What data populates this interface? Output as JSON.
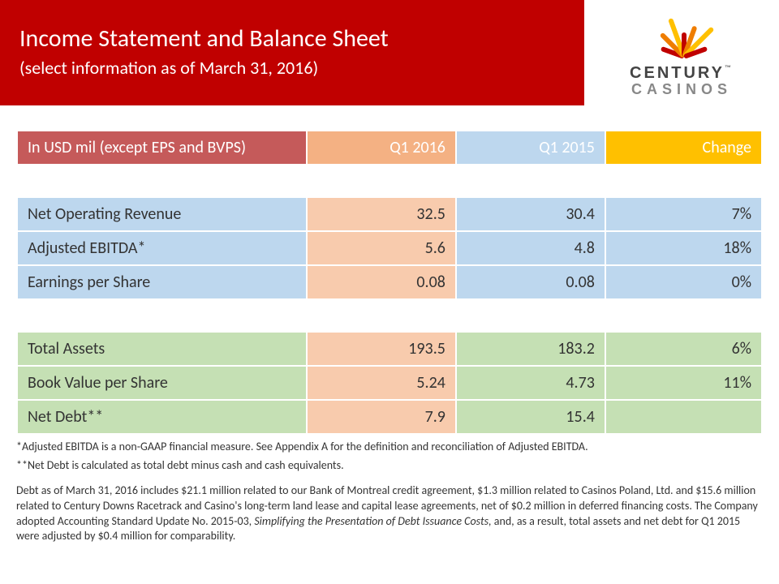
{
  "header": {
    "title": "Income Statement and Balance Sheet",
    "subtitle": "(select information as of March 31, 2016)",
    "banner_bg": "#c00000",
    "banner_text_color": "#ffffff",
    "title_fontsize": 30,
    "subtitle_fontsize": 22
  },
  "logo": {
    "line1": "CENTURY",
    "line2": "CASINOS",
    "tm": "™",
    "ray_colors": [
      "#c00000",
      "#ef7d00",
      "#ffc000",
      "#c00000",
      "#ef7d00",
      "#ffc000",
      "#c00000"
    ]
  },
  "table": {
    "header": {
      "label": "In USD mil (except EPS and BVPS)",
      "c1": "Q1 2016",
      "c2": "Q1 2015",
      "c3": "Change",
      "colors": {
        "label_bg": "#c55a5a",
        "c1_bg": "#f4b183",
        "c2_bg": "#bdd7ee",
        "c3_bg": "#ffc000",
        "text": "#ffffff"
      }
    },
    "section1": {
      "colors": {
        "label_bg": "#bdd7ee",
        "c1_bg": "#f8cbad",
        "c2_bg": "#bdd7ee",
        "c3_bg": "#bdd7ee"
      },
      "rows": [
        {
          "label": "Net Operating Revenue",
          "c1": "32.5",
          "c2": "30.4",
          "c3": "7%"
        },
        {
          "label": "Adjusted EBITDA*",
          "c1": "5.6",
          "c2": "4.8",
          "c3": "18%"
        },
        {
          "label": "Earnings per Share",
          "c1": "0.08",
          "c2": "0.08",
          "c3": "0%"
        }
      ]
    },
    "section2": {
      "colors": {
        "label_bg": "#c5e0b4",
        "c1_bg": "#f8cbad",
        "c2_bg": "#c5e0b4",
        "c3_bg": "#c5e0b4"
      },
      "rows": [
        {
          "label": "Total Assets",
          "c1": "193.5",
          "c2": "183.2",
          "c3": "6%"
        },
        {
          "label": "Book Value per Share",
          "c1": "5.24",
          "c2": "4.73",
          "c3": "11%"
        },
        {
          "label": "Net Debt**",
          "c1": "7.9",
          "c2": "15.4",
          "c3": ""
        }
      ]
    },
    "cell_fontsize": 20
  },
  "footnotes": {
    "n1": "*Adjusted EBITDA is a non-GAAP financial measure. See Appendix A for the definition and reconciliation of Adjusted EBITDA.",
    "n2": "**Net Debt is calculated as total debt minus cash and cash equivalents.",
    "n3a": "Debt as of March 31, 2016 includes $21.1 million related to our Bank of Montreal credit agreement, $1.3 million related to Casinos Poland, Ltd. and $15.6 million related to Century Downs Racetrack and Casino's long-term land lease and capital lease agreements, net of $0.2 million in deferred financing costs. The Company adopted Accounting Standard Update No. 2015-03, ",
    "n3_italic": "Simplifying the Presentation of Debt Issuance Costs,",
    "n3b": " and, as a result, total assets and net debt for Q1 2015 were adjusted by $0.4 million for comparability.",
    "fontsize": 14
  }
}
